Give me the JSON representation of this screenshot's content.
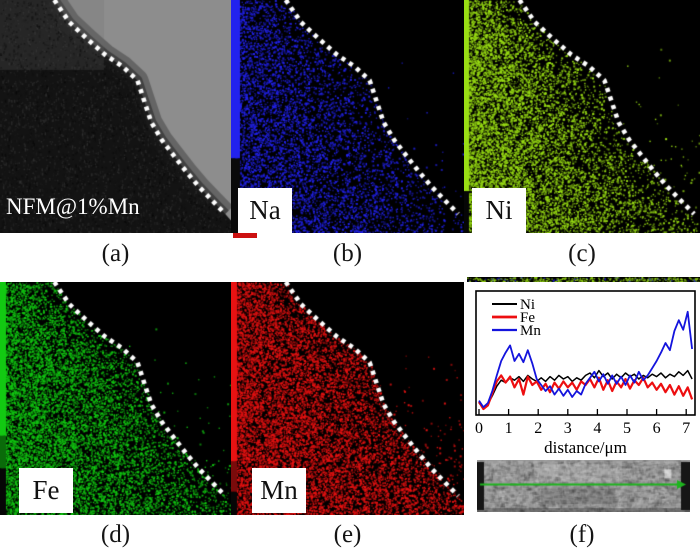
{
  "panels": {
    "a": {
      "caption": "(a)",
      "label": "NFM@1%Mn",
      "kind": "TEM image with dotted particle boundary"
    },
    "b": {
      "caption": "(b)",
      "label": "Na",
      "dot_color": "#2222ee",
      "bar_color": "#2222ee",
      "seed": 7,
      "din": 0.52,
      "fade": 0.8,
      "dout": 0.02,
      "barw": 9,
      "bar_segments": [
        {
          "c": "#2222ee",
          "f": 0.0,
          "t": 0.68
        },
        {
          "c": "#0a0a0a",
          "f": 0.68,
          "t": 1.0
        }
      ]
    },
    "c": {
      "caption": "(c)",
      "label": "Ni",
      "dot_color": "#9ade14",
      "bar_color": "#9ade14",
      "seed": 11,
      "din": 0.85,
      "fade": 0.92,
      "dout": 0.05,
      "barw": 5,
      "bar_segments": [
        {
          "c": "#9ade14",
          "f": 0.0,
          "t": 0.82
        },
        {
          "c": "#060606",
          "f": 0.82,
          "t": 1.0
        }
      ]
    },
    "d": {
      "caption": "(d)",
      "label": "Fe",
      "dot_color": "#12c912",
      "bar_color": "#12c912",
      "seed": 19,
      "din": 0.82,
      "fade": 0.75,
      "dout": 0.04,
      "barw": 6,
      "bar_segments": [
        {
          "c": "#12c912",
          "f": 0.0,
          "t": 0.66
        },
        {
          "c": "#0a6b0a",
          "f": 0.66,
          "t": 0.8
        },
        {
          "c": "#060606",
          "f": 0.8,
          "t": 1.0
        }
      ]
    },
    "e": {
      "caption": "(e)",
      "label": "Mn",
      "dot_color": "#e81212",
      "bar_color": "#e81212",
      "seed": 23,
      "din": 0.78,
      "fade": 0.55,
      "dout": 0.1,
      "barw": 6,
      "bar_segments": [
        {
          "c": "#e81212",
          "f": 0.0,
          "t": 0.77
        },
        {
          "c": "#7a0b0b",
          "f": 0.77,
          "t": 0.9
        },
        {
          "c": "#060606",
          "f": 0.9,
          "t": 1.0
        }
      ]
    },
    "f": {
      "caption": "(f)",
      "kind": "EDS line scan plot with SEM strip"
    }
  },
  "boundary": [
    [
      0.235,
      0.0
    ],
    [
      0.3,
      0.095
    ],
    [
      0.375,
      0.165
    ],
    [
      0.455,
      0.235
    ],
    [
      0.53,
      0.285
    ],
    [
      0.595,
      0.345
    ],
    [
      0.625,
      0.435
    ],
    [
      0.655,
      0.525
    ],
    [
      0.7,
      0.6
    ],
    [
      0.75,
      0.665
    ],
    [
      0.805,
      0.735
    ],
    [
      0.86,
      0.8
    ],
    [
      0.92,
      0.862
    ],
    [
      0.975,
      0.918
    ]
  ],
  "chart_data": {
    "type": "line",
    "title": "",
    "xlabel": "distance/μm",
    "ylabel": "",
    "x_start": 0,
    "x_step": 0.15,
    "xlim": [
      0,
      7.2
    ],
    "ylim": [
      0,
      1
    ],
    "x_ticks": [
      0,
      1,
      2,
      3,
      4,
      5,
      6,
      7
    ],
    "grid": false,
    "legend_position": "top-left",
    "y_axis_note": "intensity (a.u., no ticks shown)",
    "series": [
      {
        "name": "Ni",
        "color": "#000000",
        "width": 1.5,
        "y": [
          0.1,
          0.06,
          0.09,
          0.16,
          0.24,
          0.29,
          0.27,
          0.31,
          0.29,
          0.32,
          0.28,
          0.33,
          0.3,
          0.28,
          0.31,
          0.28,
          0.32,
          0.29,
          0.33,
          0.3,
          0.32,
          0.28,
          0.31,
          0.29,
          0.33,
          0.35,
          0.31,
          0.37,
          0.32,
          0.35,
          0.3,
          0.34,
          0.31,
          0.35,
          0.32,
          0.34,
          0.3,
          0.33,
          0.31,
          0.34,
          0.32,
          0.35,
          0.31,
          0.34,
          0.32,
          0.36,
          0.33,
          0.37,
          0.3
        ]
      },
      {
        "name": "Fe",
        "color": "#ed0e10",
        "width": 2.2,
        "y": [
          0.11,
          0.05,
          0.08,
          0.18,
          0.28,
          0.33,
          0.27,
          0.32,
          0.23,
          0.3,
          0.17,
          0.32,
          0.25,
          0.28,
          0.21,
          0.26,
          0.19,
          0.27,
          0.22,
          0.28,
          0.23,
          0.27,
          0.21,
          0.28,
          0.25,
          0.3,
          0.23,
          0.31,
          0.21,
          0.29,
          0.2,
          0.28,
          0.23,
          0.3,
          0.22,
          0.29,
          0.25,
          0.31,
          0.23,
          0.27,
          0.21,
          0.26,
          0.19,
          0.25,
          0.17,
          0.24,
          0.16,
          0.23,
          0.13
        ]
      },
      {
        "name": "Mn",
        "color": "#1414dd",
        "width": 1.8,
        "y": [
          0.12,
          0.065,
          0.1,
          0.2,
          0.33,
          0.45,
          0.52,
          0.58,
          0.45,
          0.51,
          0.44,
          0.54,
          0.43,
          0.3,
          0.25,
          0.2,
          0.24,
          0.17,
          0.22,
          0.16,
          0.21,
          0.15,
          0.2,
          0.17,
          0.26,
          0.31,
          0.36,
          0.28,
          0.34,
          0.26,
          0.33,
          0.26,
          0.32,
          0.25,
          0.33,
          0.27,
          0.36,
          0.29,
          0.33,
          0.39,
          0.45,
          0.52,
          0.6,
          0.54,
          0.7,
          0.79,
          0.71,
          0.86,
          0.55
        ]
      }
    ]
  },
  "linescan_image": {
    "arrow_color": "#1eb41e",
    "description": "SEM strip with green line-scan arrow"
  },
  "dotted_line_color": "#ffffff"
}
